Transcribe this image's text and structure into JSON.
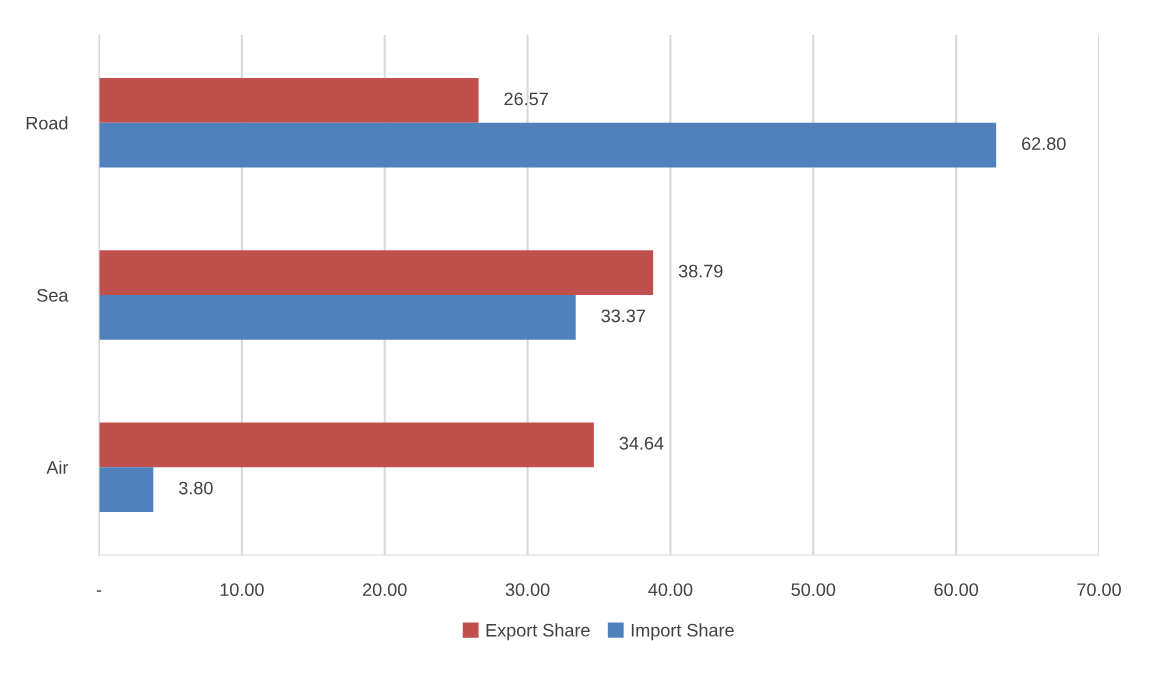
{
  "chart_data": {
    "type": "bar",
    "orientation": "horizontal",
    "categories": [
      "Road",
      "Sea",
      "Air"
    ],
    "series": [
      {
        "name": "Export Share",
        "color": "#c0504d",
        "values": [
          26.57,
          38.79,
          34.64
        ],
        "value_labels": [
          "26.57",
          "38.79",
          "34.64"
        ]
      },
      {
        "name": "Import Share",
        "color": "#4f81bd",
        "values": [
          62.8,
          33.37,
          3.8
        ],
        "value_labels": [
          "62.80",
          "33.37",
          "3.80"
        ]
      }
    ],
    "xlim": [
      0,
      70
    ],
    "xticks": [
      {
        "value": 0,
        "label": "-"
      },
      {
        "value": 10,
        "label": "10.00"
      },
      {
        "value": 20,
        "label": "20.00"
      },
      {
        "value": 30,
        "label": "30.00"
      },
      {
        "value": 40,
        "label": "40.00"
      },
      {
        "value": 50,
        "label": "50.00"
      },
      {
        "value": 60,
        "label": "60.00"
      },
      {
        "value": 70,
        "label": "70.00"
      }
    ],
    "grid": "x",
    "legend": "bottom"
  }
}
